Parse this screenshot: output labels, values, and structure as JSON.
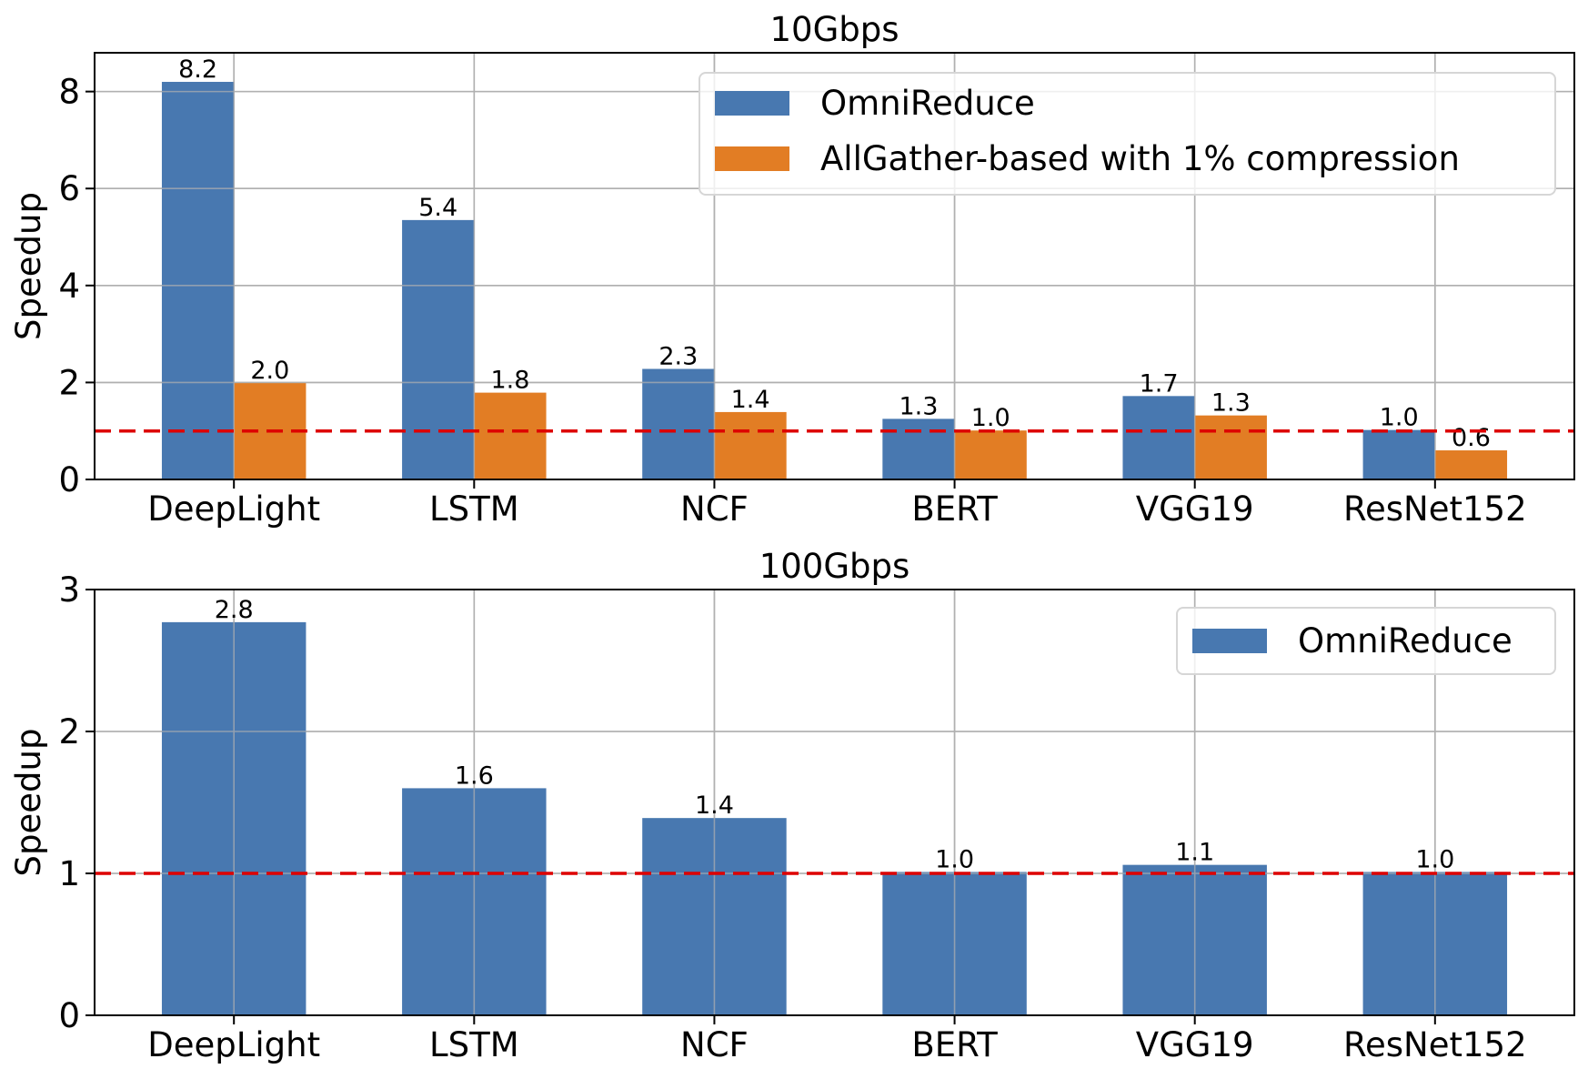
{
  "chart_data": [
    {
      "type": "bar",
      "title": "10Gbps",
      "xlabel": "",
      "ylabel": "Speedup",
      "categories": [
        "DeepLight",
        "LSTM",
        "NCF",
        "BERT",
        "VGG19",
        "ResNet152"
      ],
      "series": [
        {
          "name": "OmniReduce",
          "color": "#4878b0",
          "values": [
            8.2,
            5.35,
            2.28,
            1.25,
            1.72,
            1.02
          ],
          "labels": [
            "8.2",
            "5.4",
            "2.3",
            "1.3",
            "1.7",
            "1.0"
          ]
        },
        {
          "name": "AllGather-based with 1% compression",
          "color": "#e27d24",
          "values": [
            1.99,
            1.79,
            1.39,
            1.01,
            1.32,
            0.6
          ],
          "labels": [
            "2.0",
            "1.8",
            "1.4",
            "1.0",
            "1.3",
            "0.6"
          ]
        }
      ],
      "yticks": [
        0,
        2,
        4,
        6,
        8
      ],
      "ylim": [
        0,
        8.8
      ],
      "reference_line": {
        "y": 1.0,
        "color": "#dd0000",
        "style": "dashed"
      },
      "grid": true,
      "legend": "top-right"
    },
    {
      "type": "bar",
      "title": "100Gbps",
      "xlabel": "",
      "ylabel": "Speedup",
      "categories": [
        "DeepLight",
        "LSTM",
        "NCF",
        "BERT",
        "VGG19",
        "ResNet152"
      ],
      "series": [
        {
          "name": "OmniReduce",
          "color": "#4878b0",
          "values": [
            2.77,
            1.6,
            1.39,
            1.01,
            1.06,
            1.01
          ],
          "labels": [
            "2.8",
            "1.6",
            "1.4",
            "1.0",
            "1.1",
            "1.0"
          ]
        }
      ],
      "yticks": [
        0,
        1,
        2,
        3
      ],
      "ylim": [
        0,
        3
      ],
      "reference_line": {
        "y": 1.0,
        "color": "#dd0000",
        "style": "dashed"
      },
      "grid": true,
      "legend": "top-right"
    }
  ]
}
